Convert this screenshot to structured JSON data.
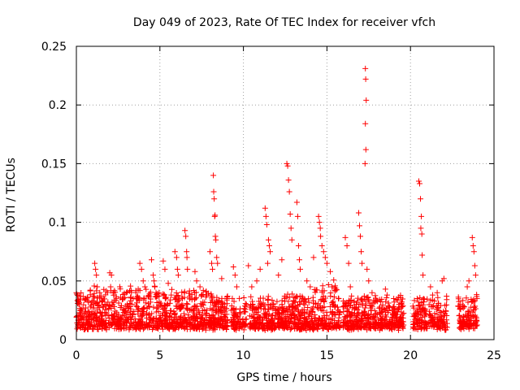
{
  "chart_data": {
    "type": "scatter",
    "title": "Day 049 of 2023, Rate Of TEC Index for receiver vfch",
    "xlabel": "GPS time / hours",
    "ylabel": "ROTI / TECUs",
    "xlim": [
      0,
      25
    ],
    "ylim": [
      0,
      0.25
    ],
    "x_ticks": [
      0,
      5,
      10,
      15,
      20,
      25
    ],
    "x_tick_labels": [
      "0",
      "5",
      "10",
      "15",
      "20",
      "25"
    ],
    "y_ticks": [
      0,
      0.05,
      0.1,
      0.15,
      0.2,
      0.25
    ],
    "y_tick_labels": [
      "0",
      "0.05",
      "0.1",
      "0.15",
      "0.2",
      "0.25"
    ],
    "grid": true,
    "marker": "+",
    "color": "#ff0000",
    "points": [
      [
        0.0,
        0.04
      ],
      [
        0.1,
        0.033
      ],
      [
        0.15,
        0.03
      ],
      [
        0.3,
        0.025
      ],
      [
        0.5,
        0.022
      ],
      [
        0.8,
        0.02
      ],
      [
        1.1,
        0.065
      ],
      [
        1.15,
        0.06
      ],
      [
        1.2,
        0.055
      ],
      [
        1.25,
        0.045
      ],
      [
        1.4,
        0.04
      ],
      [
        2.0,
        0.057
      ],
      [
        2.1,
        0.055
      ],
      [
        2.05,
        0.045
      ],
      [
        2.2,
        0.04
      ],
      [
        1.7,
        0.03
      ],
      [
        2.6,
        0.045
      ],
      [
        3.0,
        0.04
      ],
      [
        3.4,
        0.035
      ],
      [
        3.7,
        0.043
      ],
      [
        3.8,
        0.065
      ],
      [
        3.9,
        0.06
      ],
      [
        4.0,
        0.05
      ],
      [
        4.1,
        0.045
      ],
      [
        4.6,
        0.055
      ],
      [
        4.65,
        0.05
      ],
      [
        4.7,
        0.045
      ],
      [
        4.5,
        0.068
      ],
      [
        5.2,
        0.067
      ],
      [
        5.3,
        0.06
      ],
      [
        5.5,
        0.048
      ],
      [
        5.9,
        0.075
      ],
      [
        6.0,
        0.07
      ],
      [
        6.05,
        0.06
      ],
      [
        6.1,
        0.055
      ],
      [
        6.5,
        0.093
      ],
      [
        6.55,
        0.088
      ],
      [
        6.6,
        0.075
      ],
      [
        6.62,
        0.07
      ],
      [
        6.65,
        0.06
      ],
      [
        7.1,
        0.058
      ],
      [
        7.2,
        0.05
      ],
      [
        7.4,
        0.045
      ],
      [
        7.6,
        0.042
      ],
      [
        7.8,
        0.038
      ],
      [
        8.0,
        0.075
      ],
      [
        8.1,
        0.065
      ],
      [
        8.15,
        0.06
      ],
      [
        8.2,
        0.14
      ],
      [
        8.22,
        0.126
      ],
      [
        8.25,
        0.12
      ],
      [
        8.3,
        0.106
      ],
      [
        8.28,
        0.105
      ],
      [
        8.32,
        0.088
      ],
      [
        8.35,
        0.085
      ],
      [
        8.4,
        0.07
      ],
      [
        8.45,
        0.065
      ],
      [
        8.7,
        0.052
      ],
      [
        9.0,
        0.035
      ],
      [
        9.4,
        0.062
      ],
      [
        9.5,
        0.055
      ],
      [
        9.6,
        0.045
      ],
      [
        10.3,
        0.063
      ],
      [
        10.5,
        0.045
      ],
      [
        10.8,
        0.05
      ],
      [
        11.0,
        0.06
      ],
      [
        11.3,
        0.112
      ],
      [
        11.35,
        0.105
      ],
      [
        11.4,
        0.098
      ],
      [
        11.5,
        0.085
      ],
      [
        11.55,
        0.08
      ],
      [
        11.6,
        0.075
      ],
      [
        11.45,
        0.065
      ],
      [
        12.1,
        0.055
      ],
      [
        12.3,
        0.068
      ],
      [
        12.6,
        0.15
      ],
      [
        12.65,
        0.148
      ],
      [
        12.7,
        0.136
      ],
      [
        12.75,
        0.126
      ],
      [
        12.8,
        0.107
      ],
      [
        12.85,
        0.095
      ],
      [
        12.9,
        0.085
      ],
      [
        13.2,
        0.117
      ],
      [
        13.25,
        0.105
      ],
      [
        13.3,
        0.08
      ],
      [
        13.35,
        0.068
      ],
      [
        13.4,
        0.06
      ],
      [
        13.8,
        0.05
      ],
      [
        14.0,
        0.045
      ],
      [
        14.2,
        0.07
      ],
      [
        14.5,
        0.105
      ],
      [
        14.55,
        0.1
      ],
      [
        14.6,
        0.095
      ],
      [
        14.62,
        0.088
      ],
      [
        14.7,
        0.08
      ],
      [
        14.8,
        0.075
      ],
      [
        14.9,
        0.07
      ],
      [
        15.0,
        0.065
      ],
      [
        15.2,
        0.058
      ],
      [
        15.3,
        0.045
      ],
      [
        16.1,
        0.087
      ],
      [
        16.2,
        0.08
      ],
      [
        16.3,
        0.065
      ],
      [
        16.4,
        0.045
      ],
      [
        16.9,
        0.108
      ],
      [
        16.95,
        0.097
      ],
      [
        17.0,
        0.088
      ],
      [
        17.05,
        0.075
      ],
      [
        17.1,
        0.065
      ],
      [
        17.3,
        0.231
      ],
      [
        17.32,
        0.222
      ],
      [
        17.35,
        0.204
      ],
      [
        17.3,
        0.184
      ],
      [
        17.33,
        0.162
      ],
      [
        17.28,
        0.15
      ],
      [
        17.4,
        0.06
      ],
      [
        17.5,
        0.05
      ],
      [
        17.7,
        0.04
      ],
      [
        18.5,
        0.043
      ],
      [
        18.6,
        0.038
      ],
      [
        19.0,
        0.035
      ],
      [
        19.5,
        0.028
      ],
      [
        20.2,
        0.02
      ],
      [
        20.4,
        0.035
      ],
      [
        20.5,
        0.135
      ],
      [
        20.55,
        0.133
      ],
      [
        20.6,
        0.12
      ],
      [
        20.65,
        0.105
      ],
      [
        20.62,
        0.095
      ],
      [
        20.68,
        0.09
      ],
      [
        20.7,
        0.072
      ],
      [
        20.75,
        0.055
      ],
      [
        21.2,
        0.045
      ],
      [
        21.6,
        0.04
      ],
      [
        21.9,
        0.05
      ],
      [
        22.0,
        0.052
      ],
      [
        23.0,
        0.03
      ],
      [
        23.4,
        0.045
      ],
      [
        23.5,
        0.05
      ],
      [
        23.7,
        0.087
      ],
      [
        23.75,
        0.08
      ],
      [
        23.8,
        0.075
      ],
      [
        23.85,
        0.063
      ],
      [
        23.9,
        0.055
      ]
    ]
  }
}
